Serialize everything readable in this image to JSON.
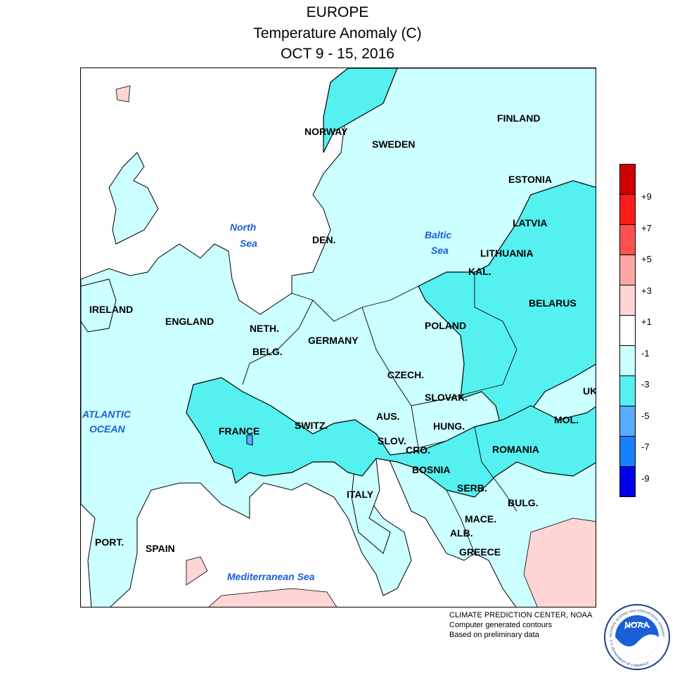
{
  "titles": {
    "line1": "EUROPE",
    "line2": "Temperature Anomaly (C)",
    "line3": "OCT 9 - 15, 2016"
  },
  "countries": [
    {
      "name": "NORWAY"
    },
    {
      "name": "SWEDEN"
    },
    {
      "name": "FINLAND"
    },
    {
      "name": "ESTONIA"
    },
    {
      "name": "LATVIA"
    },
    {
      "name": "LITHUANIA"
    },
    {
      "name": "DEN."
    },
    {
      "name": "KAL."
    },
    {
      "name": "BELARUS"
    },
    {
      "name": "IRELAND"
    },
    {
      "name": "ENGLAND"
    },
    {
      "name": "NETH."
    },
    {
      "name": "BELG."
    },
    {
      "name": "GERMANY"
    },
    {
      "name": "POLAND"
    },
    {
      "name": "CZECH."
    },
    {
      "name": "SLOVAK."
    },
    {
      "name": "UK"
    },
    {
      "name": "AUS."
    },
    {
      "name": "FRANCE"
    },
    {
      "name": "SWITZ."
    },
    {
      "name": "HUNG."
    },
    {
      "name": "MOL."
    },
    {
      "name": "SLOV."
    },
    {
      "name": "CRO."
    },
    {
      "name": "ROMANIA"
    },
    {
      "name": "BOSNIA"
    },
    {
      "name": "SERB."
    },
    {
      "name": "ITALY"
    },
    {
      "name": "BULG."
    },
    {
      "name": "MACE."
    },
    {
      "name": "ALB."
    },
    {
      "name": "GREECE"
    },
    {
      "name": "PORT."
    },
    {
      "name": "SPAIN"
    }
  ],
  "seas": {
    "north": [
      "North",
      "Sea"
    ],
    "baltic": [
      "Baltic",
      "Sea"
    ],
    "atlantic": [
      "ATLANTIC",
      "OCEAN"
    ],
    "med": "Mediterranean Sea"
  },
  "legend": {
    "colors": [
      "#cc0000",
      "#ff1a1a",
      "#ff5050",
      "#ffa5a5",
      "#ffd5d5",
      "#ffffff",
      "#ccffff",
      "#55f0f0",
      "#5aaaff",
      "#1a80ff",
      "#0000ee"
    ],
    "ticks": [
      "+9",
      "+7",
      "+5",
      "+3",
      "+1",
      "-1",
      "-3",
      "-5",
      "-7",
      "-9"
    ]
  },
  "credits": {
    "line1": "CLIMATE PREDICTION CENTER, NOAA",
    "line2": "Computer generated contours",
    "line3": "Based on preliminary data"
  },
  "logo": {
    "text": "NOAA",
    "ring_top": "NATIONAL OCEANIC AND ATMOSPHERIC ADMINISTRATION",
    "ring_bottom": "U.S. DEPARTMENT OF COMMERCE"
  }
}
